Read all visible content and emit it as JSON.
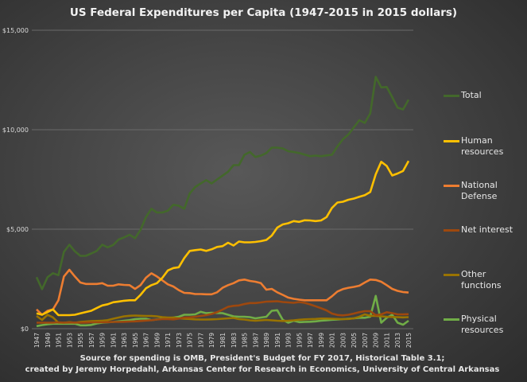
{
  "chart_data": {
    "type": "line",
    "title": "US Federal Expenditures per Capita (1947-2015 in 2015 dollars)",
    "xlabel": "",
    "ylabel": "",
    "ylim": [
      0,
      15000
    ],
    "yticks": [
      "$0",
      "$5,000",
      "$10,000",
      "$15,000"
    ],
    "ytick_values": [
      0,
      5000,
      10000,
      15000
    ],
    "grid": "horizontal",
    "legend_position": "right",
    "x": [
      1947,
      1948,
      1949,
      1950,
      1951,
      1952,
      1953,
      1954,
      1955,
      1956,
      1957,
      1958,
      1959,
      1960,
      1961,
      1962,
      1963,
      1964,
      1965,
      1966,
      1967,
      1968,
      1969,
      1970,
      1971,
      1972,
      1973,
      1974,
      1975,
      1976,
      1977,
      1978,
      1979,
      1980,
      1981,
      1982,
      1983,
      1984,
      1985,
      1986,
      1987,
      1988,
      1989,
      1990,
      1991,
      1992,
      1993,
      1994,
      1995,
      1996,
      1997,
      1998,
      1999,
      2000,
      2001,
      2002,
      2003,
      2004,
      2005,
      2006,
      2007,
      2008,
      2009,
      2010,
      2011,
      2012,
      2013,
      2014,
      2015
    ],
    "xticks": [
      "1947",
      "1949",
      "1951",
      "1953",
      "1955",
      "1957",
      "1959",
      "1961",
      "1963",
      "1965",
      "1967",
      "1969",
      "1971",
      "1973",
      "1975",
      "1977",
      "1979",
      "1981",
      "1983",
      "1985",
      "1987",
      "1989",
      "1991",
      "1993",
      "1995",
      "1997",
      "1999",
      "2001",
      "2003",
      "2005",
      "2007",
      "2009",
      "2011",
      "2013",
      "2015"
    ],
    "series": [
      {
        "name": "Total",
        "color": "#43682b",
        "values": [
          2590,
          1990,
          2590,
          2790,
          2690,
          3860,
          4220,
          3890,
          3660,
          3660,
          3780,
          3910,
          4220,
          4090,
          4210,
          4480,
          4590,
          4720,
          4550,
          4970,
          5610,
          6030,
          5840,
          5840,
          5930,
          6230,
          6180,
          6030,
          6800,
          7120,
          7300,
          7470,
          7300,
          7500,
          7690,
          7890,
          8220,
          8220,
          8740,
          8880,
          8630,
          8700,
          8830,
          9100,
          9100,
          9060,
          8920,
          8880,
          8830,
          8750,
          8670,
          8700,
          8670,
          8710,
          8740,
          9160,
          9520,
          9760,
          10120,
          10480,
          10340,
          10820,
          12660,
          12130,
          12150,
          11640,
          11110,
          11020,
          11510
        ]
      },
      {
        "name": "Human resources",
        "color": "#ffc000",
        "values": [
          770,
          700,
          835,
          970,
          680,
          680,
          680,
          700,
          770,
          835,
          900,
          1035,
          1170,
          1230,
          1330,
          1365,
          1405,
          1430,
          1430,
          1700,
          2030,
          2190,
          2290,
          2560,
          2930,
          3050,
          3090,
          3550,
          3910,
          3950,
          3980,
          3910,
          3990,
          4110,
          4150,
          4320,
          4180,
          4380,
          4340,
          4340,
          4360,
          4400,
          4460,
          4680,
          5080,
          5240,
          5300,
          5410,
          5370,
          5450,
          5440,
          5410,
          5440,
          5610,
          6070,
          6340,
          6380,
          6480,
          6540,
          6630,
          6710,
          6870,
          7760,
          8390,
          8180,
          7700,
          7800,
          7930,
          8430
        ]
      },
      {
        "name": "National Defense",
        "color": "#ed7d31",
        "values": [
          970,
          700,
          900,
          970,
          1430,
          2625,
          2960,
          2625,
          2320,
          2250,
          2250,
          2250,
          2290,
          2160,
          2160,
          2230,
          2200,
          2190,
          2000,
          2190,
          2560,
          2785,
          2625,
          2430,
          2230,
          2120,
          1935,
          1800,
          1790,
          1740,
          1740,
          1730,
          1730,
          1830,
          2055,
          2190,
          2290,
          2430,
          2470,
          2400,
          2360,
          2290,
          1960,
          2000,
          1830,
          1700,
          1565,
          1500,
          1460,
          1430,
          1430,
          1430,
          1430,
          1430,
          1630,
          1870,
          1990,
          2055,
          2100,
          2160,
          2320,
          2470,
          2450,
          2360,
          2190,
          2000,
          1900,
          1840,
          1815
        ]
      },
      {
        "name": "Net interest",
        "color": "#9e480e",
        "values": [
          300,
          300,
          300,
          300,
          320,
          300,
          310,
          310,
          300,
          310,
          320,
          320,
          320,
          330,
          340,
          340,
          350,
          360,
          370,
          390,
          410,
          430,
          460,
          480,
          480,
          470,
          510,
          560,
          570,
          600,
          640,
          680,
          740,
          830,
          960,
          1100,
          1150,
          1170,
          1240,
          1290,
          1290,
          1320,
          1360,
          1370,
          1380,
          1340,
          1320,
          1300,
          1340,
          1300,
          1220,
          1130,
          1030,
          920,
          760,
          690,
          670,
          700,
          760,
          830,
          880,
          880,
          680,
          720,
          830,
          780,
          720,
          720,
          730
        ]
      },
      {
        "name": "Other functions",
        "color": "#997300",
        "values": [
          640,
          440,
          700,
          570,
          300,
          300,
          330,
          300,
          340,
          360,
          380,
          390,
          400,
          430,
          500,
          560,
          620,
          650,
          660,
          650,
          640,
          640,
          620,
          580,
          560,
          560,
          520,
          500,
          490,
          470,
          460,
          460,
          470,
          480,
          500,
          520,
          540,
          480,
          460,
          420,
          400,
          420,
          440,
          420,
          400,
          390,
          400,
          420,
          450,
          470,
          480,
          490,
          510,
          510,
          500,
          490,
          480,
          490,
          520,
          600,
          720,
          650,
          640,
          620,
          600,
          590,
          580,
          570,
          580
        ]
      },
      {
        "name": "Physical resources",
        "color": "#70ad47",
        "values": [
          130,
          180,
          220,
          250,
          250,
          250,
          250,
          250,
          170,
          170,
          190,
          260,
          300,
          320,
          340,
          370,
          400,
          430,
          480,
          500,
          500,
          430,
          470,
          500,
          520,
          560,
          600,
          700,
          700,
          720,
          850,
          780,
          800,
          790,
          780,
          700,
          620,
          600,
          600,
          580,
          520,
          560,
          600,
          900,
          930,
          450,
          300,
          400,
          330,
          340,
          350,
          370,
          400,
          420,
          450,
          460,
          480,
          500,
          520,
          550,
          550,
          600,
          1650,
          300,
          550,
          700,
          300,
          200,
          400
        ]
      }
    ]
  },
  "legend": {
    "items": [
      {
        "label": "Total",
        "color": "#43682b"
      },
      {
        "label": "Human resources",
        "color": "#ffc000"
      },
      {
        "label": "National Defense",
        "color": "#ed7d31"
      },
      {
        "label": "Net interest",
        "color": "#9e480e"
      },
      {
        "label": "Other functions",
        "color": "#997300"
      },
      {
        "label": "Physical resources",
        "color": "#70ad47"
      }
    ]
  },
  "source": {
    "line1": "Source for spending is OMB, President's Budget for FY 2017, Historical Table 3.1;",
    "line2": "created by Jeremy Horpedahl, Arkansas Center for Research in Economics, University of Central Arkansas"
  }
}
